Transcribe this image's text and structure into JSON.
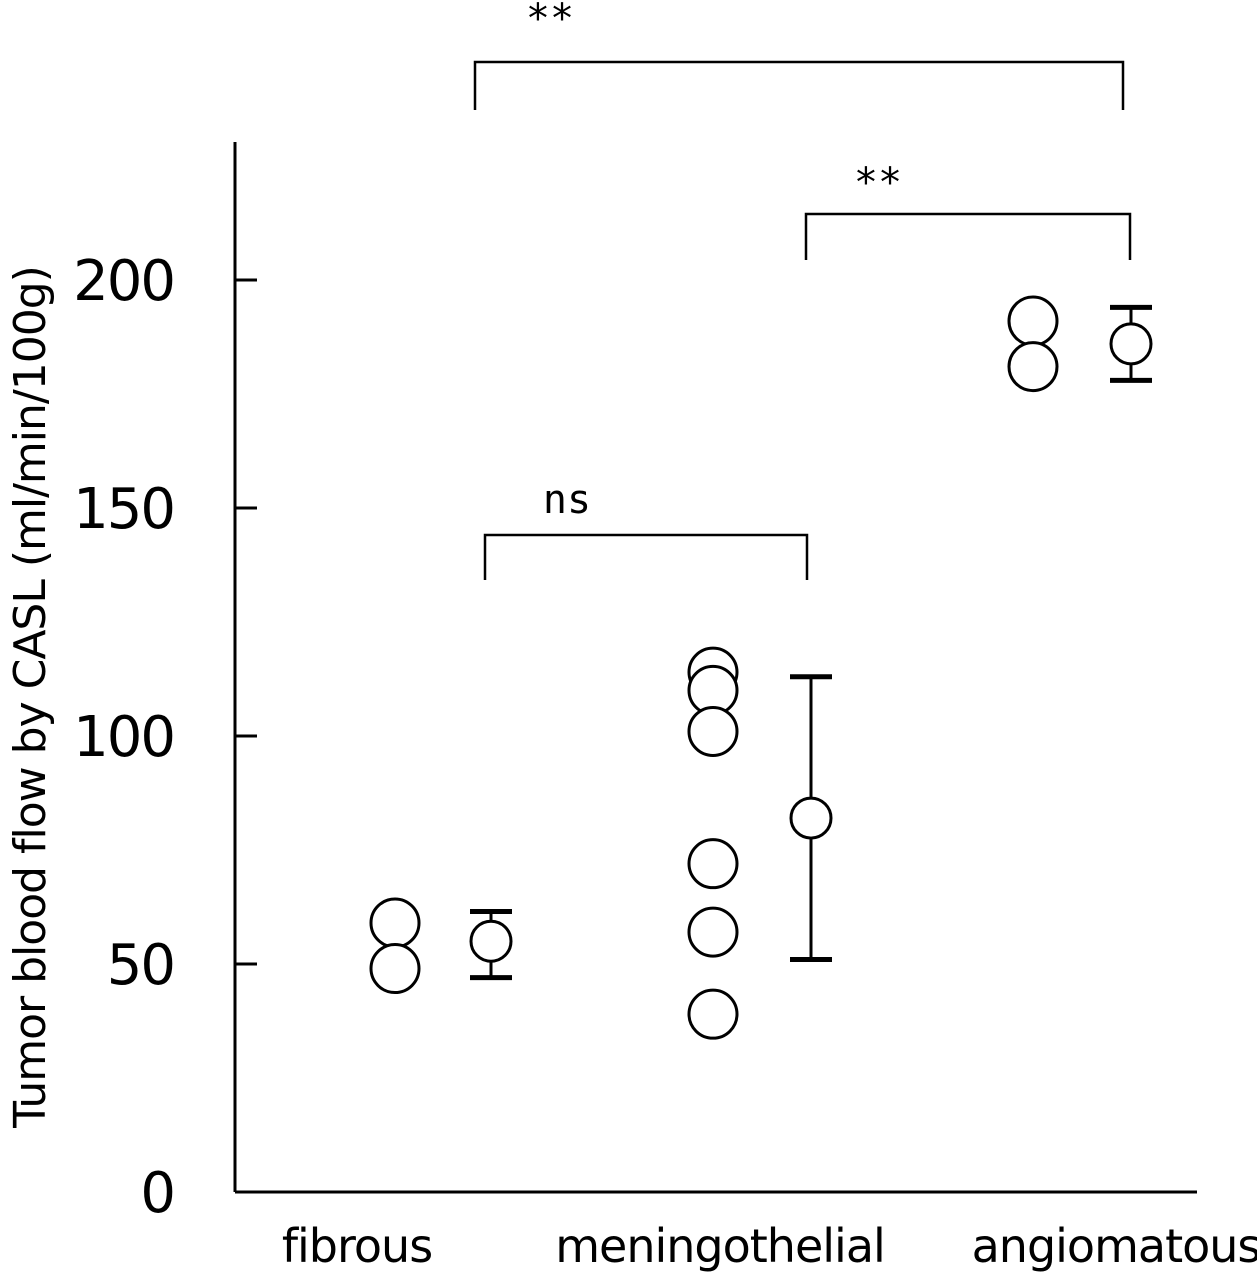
{
  "chart_data": {
    "type": "scatter",
    "title": "",
    "ylabel": "Tumor blood flow by CASL (ml/min/100g)",
    "xlabel": "",
    "ylim": [
      0,
      230
    ],
    "yticks": [
      0,
      50,
      100,
      150,
      200
    ],
    "tick_labels": [
      "0",
      "50",
      "100",
      "150",
      "200"
    ],
    "grid": false,
    "categories": [
      "fibrous",
      "meningothelial",
      "angiomatous"
    ],
    "groups": [
      {
        "category": "fibrous",
        "values": [
          59,
          49
        ],
        "mean": 55,
        "err_low": 47,
        "err_high": 61.5
      },
      {
        "category": "meningothelial",
        "values": [
          114,
          110,
          101,
          72,
          57,
          39
        ],
        "mean": 82,
        "err_low": 51,
        "err_high": 113
      },
      {
        "category": "angiomatous",
        "values": [
          191,
          181
        ],
        "mean": 186,
        "err_low": 178,
        "err_high": 194
      }
    ],
    "annotations": [
      {
        "from": "fibrous",
        "to": "angiomatous",
        "label": "**"
      },
      {
        "from": "meningothelial",
        "to": "angiomatous",
        "label": "**"
      },
      {
        "from": "fibrous",
        "to": "meningothelial",
        "label": "ns"
      }
    ]
  }
}
